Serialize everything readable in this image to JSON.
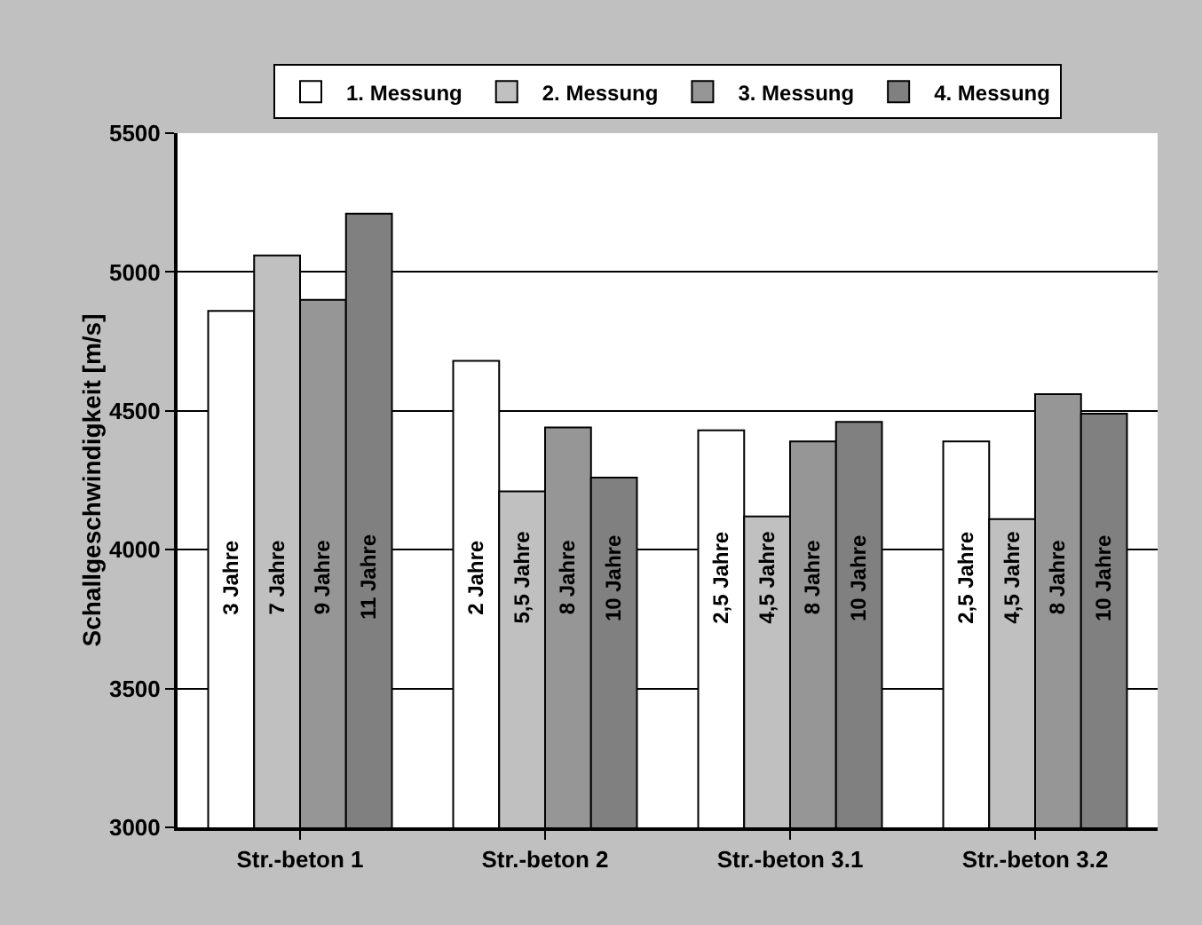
{
  "chart_data": {
    "type": "bar",
    "ylabel": "Schallgeschwindigkeit [m/s]",
    "categories": [
      "Str.-beton 1",
      "Str.-beton 2",
      "Str.-beton 3.1",
      "Str.-beton 3.2"
    ],
    "series": [
      {
        "name": "1. Messung",
        "color": "#ffffff",
        "values": [
          4860,
          4680,
          4430,
          4390
        ]
      },
      {
        "name": "2. Messung",
        "color": "#c0c0c0",
        "values": [
          5060,
          4210,
          4120,
          4110
        ]
      },
      {
        "name": "3. Messung",
        "color": "#969696",
        "values": [
          4900,
          4440,
          4390,
          4560
        ]
      },
      {
        "name": "4. Messung",
        "color": "#808080",
        "values": [
          5210,
          4260,
          4460,
          4490
        ]
      }
    ],
    "annotations": [
      {
        "text": "3 Jahre",
        "x": "Str.-beton 1",
        "y": 3900
      },
      {
        "text": "7 Jahre",
        "x": "Str.-beton 1",
        "y": 3900
      },
      {
        "text": "9 Jahre",
        "x": "Str.-beton 1",
        "y": 3900
      },
      {
        "text": "11 Jahre",
        "x": "Str.-beton 1",
        "y": 3900
      },
      {
        "text": "2 Jahre",
        "x": "Str.-beton 2",
        "y": 3900
      },
      {
        "text": "5,5 Jahre",
        "x": "Str.-beton 2",
        "y": 3900
      },
      {
        "text": "8 Jahre",
        "x": "Str.-beton 2",
        "y": 3900
      },
      {
        "text": "10 Jahre",
        "x": "Str.-beton 2",
        "y": 3900
      },
      {
        "text": "2,5 Jahre",
        "x": "Str.-beton 3.1",
        "y": 3900
      },
      {
        "text": "4,5 Jahre",
        "x": "Str.-beton 3.1",
        "y": 3900
      },
      {
        "text": "8 Jahre",
        "x": "Str.-beton 3.1",
        "y": 3900
      },
      {
        "text": "10 Jahre",
        "x": "Str.-beton 3.1",
        "y": 3900
      },
      {
        "text": "2,5 Jahre",
        "x": "Str.-beton 3.2",
        "y": 3900
      },
      {
        "text": "4,5 Jahre",
        "x": "Str.-beton 3.2",
        "y": 3900
      },
      {
        "text": "8 Jahre",
        "x": "Str.-beton 3.2",
        "y": 3900
      },
      {
        "text": "10 Jahre",
        "x": "Str.-beton 3.2",
        "y": 3900
      }
    ],
    "ylim": [
      3000,
      5500
    ],
    "yticks": [
      3000,
      3500,
      4000,
      4500,
      5000,
      5500
    ],
    "grid": "y",
    "legend": "top"
  }
}
